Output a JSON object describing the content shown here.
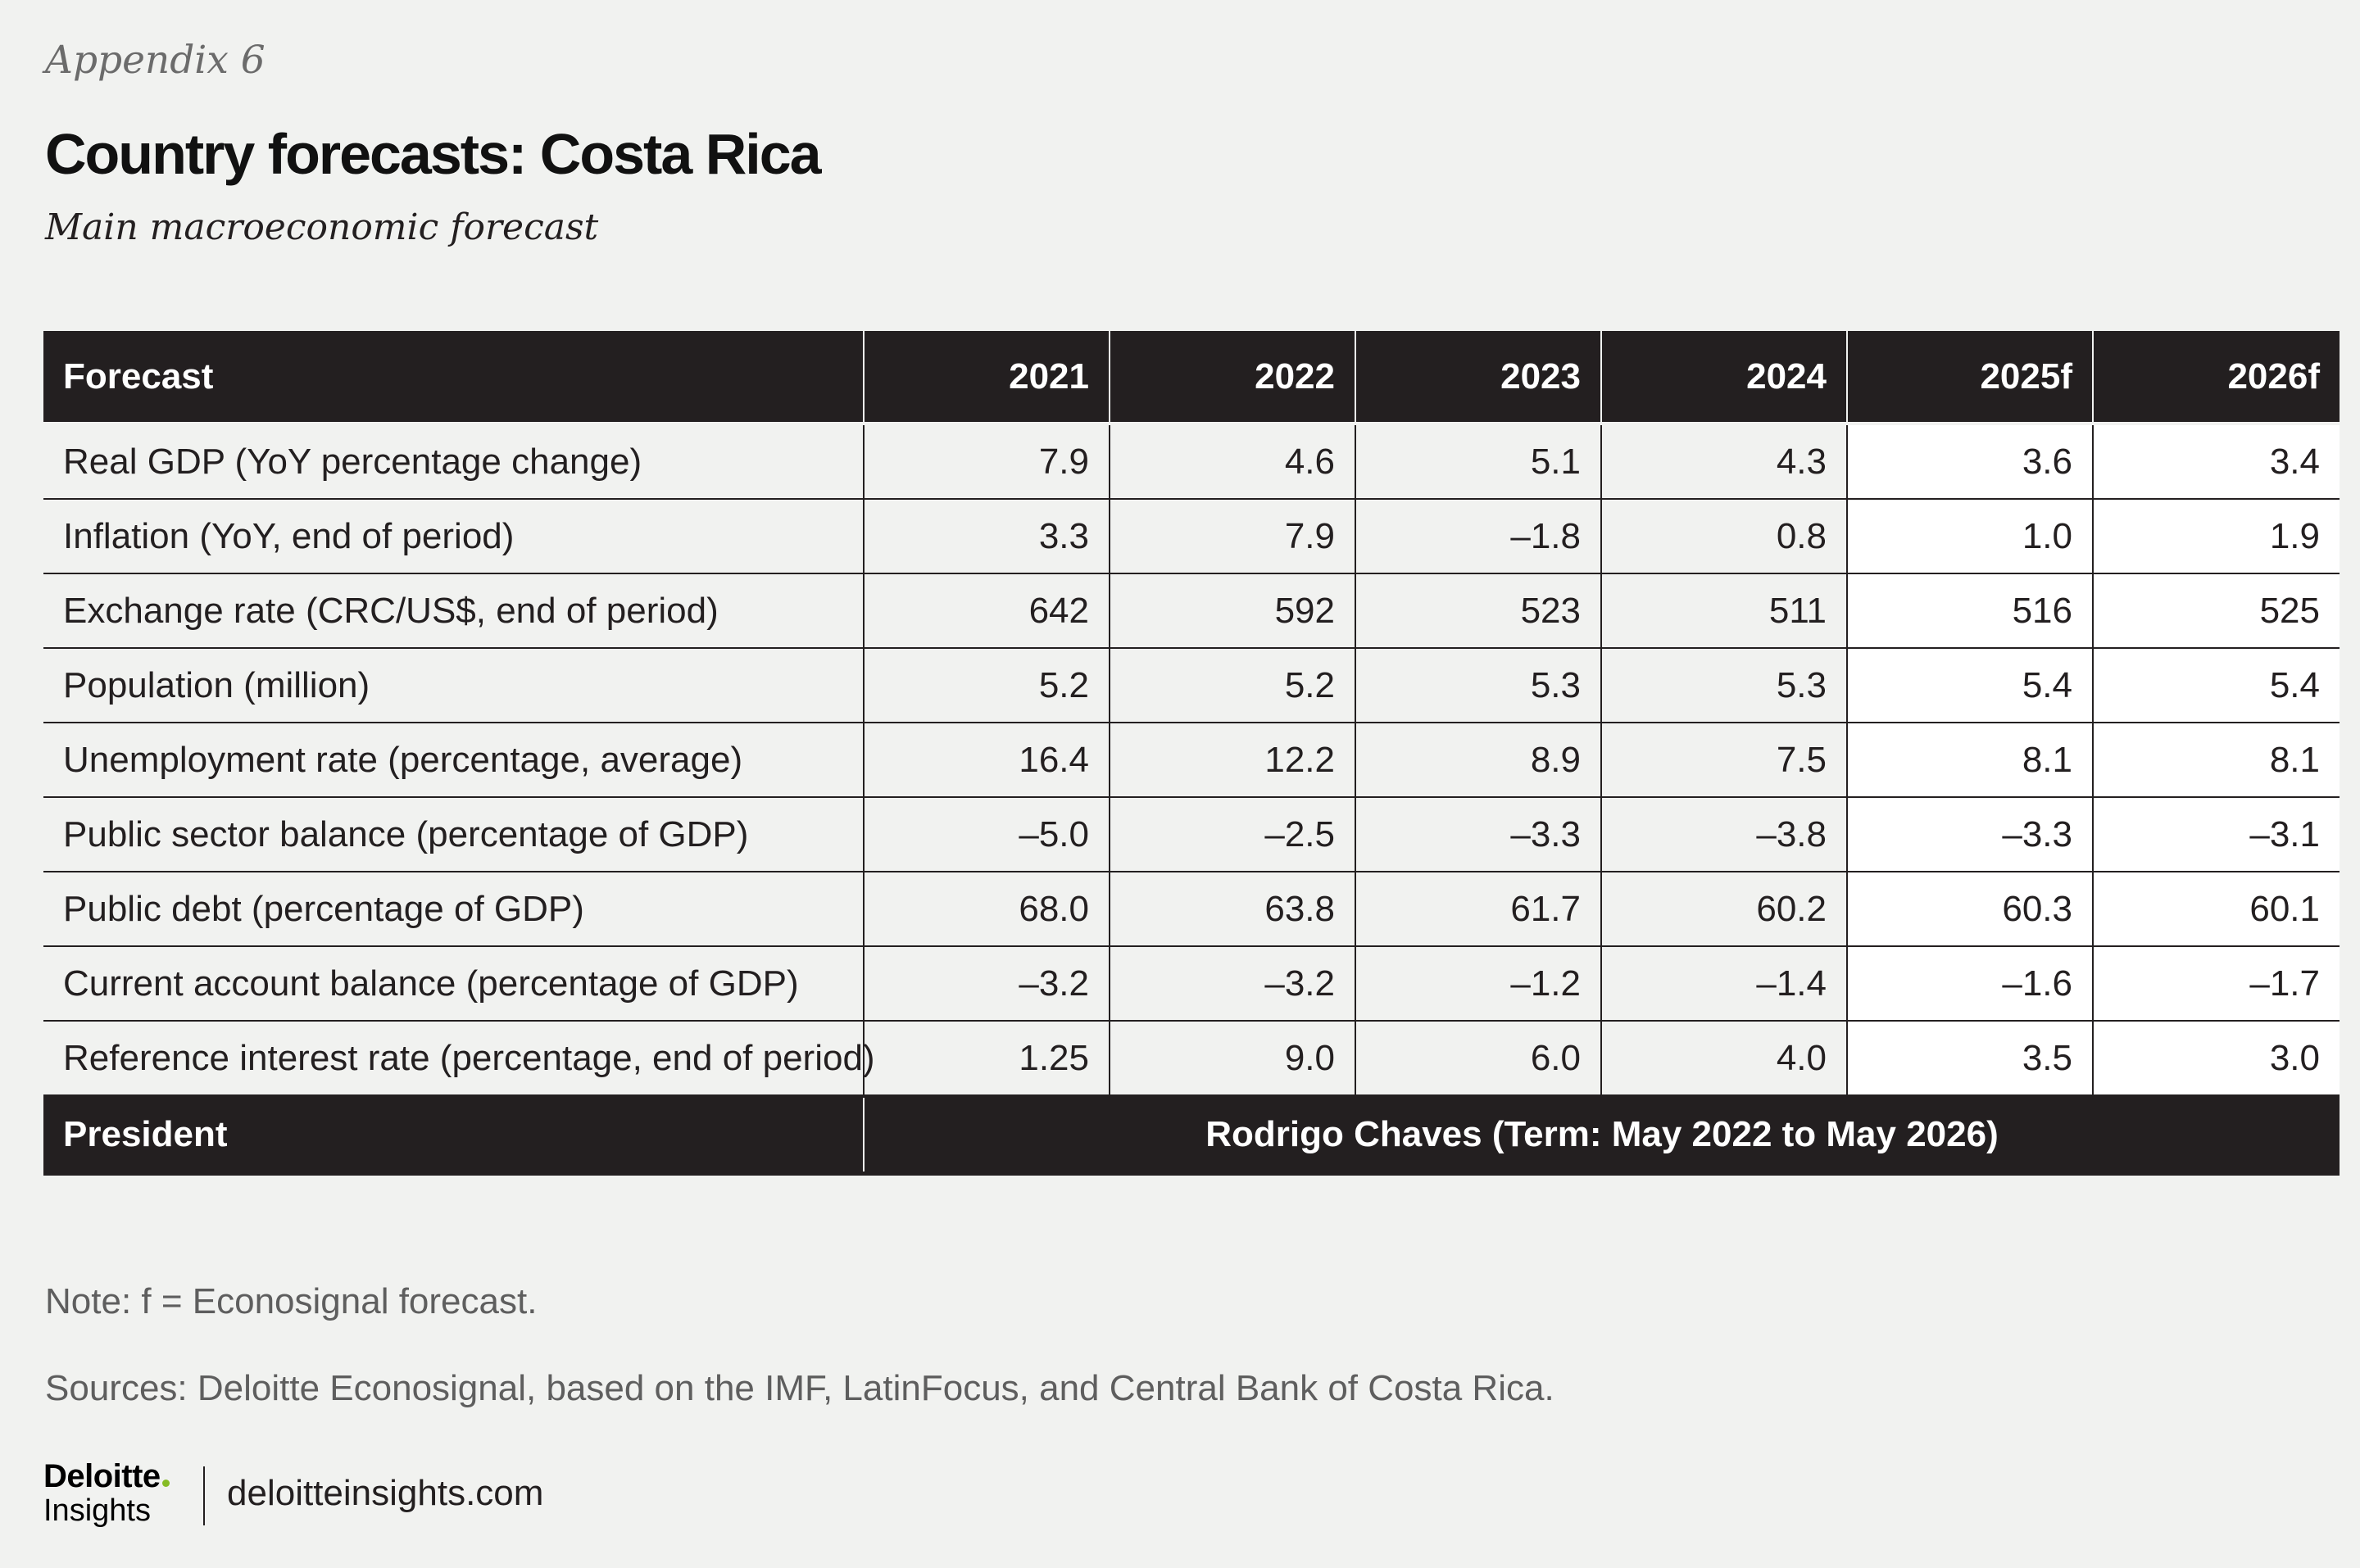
{
  "header": {
    "appendix": "Appendix 6",
    "title": "Country forecasts: Costa Rica",
    "subtitle": "Main macroeconomic forecast"
  },
  "table": {
    "columns": [
      "Forecast",
      "2021",
      "2022",
      "2023",
      "2024",
      "2025f",
      "2026f"
    ],
    "rows": [
      {
        "label": "Real GDP (YoY percentage change)",
        "values": [
          "7.9",
          "4.6",
          "5.1",
          "4.3",
          "3.6",
          "3.4"
        ]
      },
      {
        "label": "Inflation (YoY, end of period)",
        "values": [
          "3.3",
          "7.9",
          "–1.8",
          "0.8",
          "1.0",
          "1.9"
        ]
      },
      {
        "label": "Exchange rate (CRC/US$, end of period)",
        "values": [
          "642",
          "592",
          "523",
          "511",
          "516",
          "525"
        ]
      },
      {
        "label": "Population (million)",
        "values": [
          "5.2",
          "5.2",
          "5.3",
          "5.3",
          "5.4",
          "5.4"
        ]
      },
      {
        "label": "Unemployment rate (percentage, average)",
        "values": [
          "16.4",
          "12.2",
          "8.9",
          "7.5",
          "8.1",
          "8.1"
        ]
      },
      {
        "label": "Public sector balance (percentage of GDP)",
        "values": [
          "–5.0",
          "–2.5",
          "–3.3",
          "–3.8",
          "–3.3",
          "–3.1"
        ]
      },
      {
        "label": "Public debt (percentage of GDP)",
        "values": [
          "68.0",
          "63.8",
          "61.7",
          "60.2",
          "60.3",
          "60.1"
        ]
      },
      {
        "label": "Current account balance (percentage of GDP)",
        "values": [
          "–3.2",
          "–3.2",
          "–1.2",
          "–1.4",
          "–1.6",
          "–1.7"
        ]
      },
      {
        "label": "Reference interest rate (percentage, end of period)",
        "values": [
          "1.25",
          "9.0",
          "6.0",
          "4.0",
          "3.5",
          "3.0"
        ]
      }
    ],
    "president": {
      "label": "President",
      "value": "Rodrigo Chaves (Term: May 2022 to May 2026)"
    }
  },
  "notes": {
    "note": "Note: f = Econosignal forecast.",
    "sources": "Sources: Deloitte Econosignal, based on the IMF, LatinFocus, and Central Bank of Costa Rica."
  },
  "footer": {
    "logo_word": "Deloitte",
    "logo_sub": "Insights",
    "url": "deloitteinsights.com"
  },
  "colors": {
    "background": "#f1f2f0",
    "header_fill": "#231f20",
    "forecast_cell_fill": "#ffffff",
    "logo_dot": "#86bc25"
  }
}
